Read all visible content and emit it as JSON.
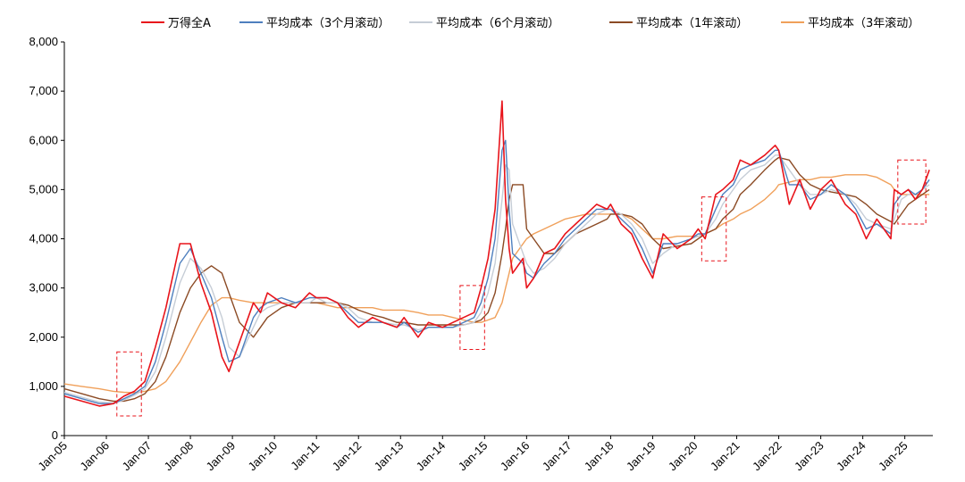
{
  "chart_data": {
    "type": "line",
    "ylim": [
      0,
      8000
    ],
    "yticks": [
      0,
      1000,
      2000,
      3000,
      4000,
      5000,
      6000,
      7000,
      8000
    ],
    "ytick_labels": [
      "0",
      "1,000",
      "2,000",
      "3,000",
      "4,000",
      "5,000",
      "6,000",
      "7,000",
      "8,000"
    ],
    "x_range": [
      "2005-01",
      "2025-09"
    ],
    "xtick_labels": [
      "Jan-05",
      "Jan-06",
      "Jan-07",
      "Jan-08",
      "Jan-09",
      "Jan-10",
      "Jan-11",
      "Jan-12",
      "Jan-13",
      "Jan-14",
      "Jan-15",
      "Jan-16",
      "Jan-17",
      "Jan-18",
      "Jan-19",
      "Jan-20",
      "Jan-21",
      "Jan-22",
      "Jan-23",
      "Jan-24",
      "Jan-25"
    ],
    "legend_position": "top",
    "grid": false,
    "series": [
      {
        "name": "万得全A",
        "color": "#e8141b",
        "x": [
          "2005-01",
          "2005-06",
          "2005-11",
          "2006-03",
          "2006-06",
          "2006-09",
          "2006-12",
          "2007-03",
          "2007-06",
          "2007-10",
          "2008-01",
          "2008-04",
          "2008-07",
          "2008-10",
          "2008-12",
          "2009-03",
          "2009-07",
          "2009-09",
          "2009-11",
          "2010-03",
          "2010-07",
          "2010-11",
          "2011-01",
          "2011-04",
          "2011-07",
          "2011-10",
          "2012-01",
          "2012-05",
          "2012-08",
          "2012-12",
          "2013-02",
          "2013-06",
          "2013-09",
          "2014-01",
          "2014-04",
          "2014-07",
          "2014-10",
          "2014-12",
          "2015-02",
          "2015-04",
          "2015-06",
          "2015-07",
          "2015-08",
          "2015-09",
          "2015-12",
          "2016-01",
          "2016-03",
          "2016-06",
          "2016-09",
          "2016-12",
          "2017-03",
          "2017-06",
          "2017-09",
          "2017-12",
          "2018-01",
          "2018-04",
          "2018-07",
          "2018-10",
          "2019-01",
          "2019-04",
          "2019-08",
          "2019-12",
          "2020-02",
          "2020-04",
          "2020-07",
          "2020-09",
          "2020-12",
          "2021-02",
          "2021-05",
          "2021-09",
          "2021-12",
          "2022-01",
          "2022-04",
          "2022-07",
          "2022-10",
          "2023-01",
          "2023-04",
          "2023-08",
          "2023-11",
          "2024-02",
          "2024-05",
          "2024-09",
          "2024-10",
          "2024-12",
          "2025-02",
          "2025-04",
          "2025-06",
          "2025-08"
        ],
        "values": [
          800,
          700,
          600,
          650,
          800,
          900,
          1100,
          1800,
          2600,
          3900,
          3900,
          3100,
          2500,
          1600,
          1300,
          1900,
          2700,
          2500,
          2900,
          2700,
          2600,
          2900,
          2800,
          2800,
          2700,
          2400,
          2200,
          2400,
          2300,
          2200,
          2400,
          2000,
          2300,
          2200,
          2300,
          2400,
          2500,
          3000,
          3600,
          4600,
          6800,
          4800,
          3800,
          3300,
          3600,
          3000,
          3200,
          3700,
          3800,
          4100,
          4300,
          4500,
          4700,
          4600,
          4700,
          4300,
          4100,
          3600,
          3200,
          4100,
          3800,
          4000,
          4200,
          4000,
          4900,
          5000,
          5200,
          5600,
          5500,
          5700,
          5900,
          5800,
          4700,
          5200,
          4600,
          5000,
          5200,
          4700,
          4500,
          4000,
          4400,
          4000,
          5000,
          4900,
          5000,
          4800,
          5000,
          5400
        ]
      },
      {
        "name": "平均成本（3个月滚动）",
        "color": "#4e7fbe",
        "x": [
          "2005-01",
          "2005-06",
          "2005-11",
          "2006-03",
          "2006-06",
          "2006-09",
          "2006-12",
          "2007-03",
          "2007-06",
          "2007-10",
          "2008-01",
          "2008-04",
          "2008-07",
          "2008-10",
          "2008-12",
          "2009-03",
          "2009-07",
          "2009-09",
          "2009-11",
          "2010-03",
          "2010-07",
          "2010-11",
          "2011-01",
          "2011-04",
          "2011-07",
          "2011-10",
          "2012-01",
          "2012-05",
          "2012-08",
          "2012-12",
          "2013-02",
          "2013-06",
          "2013-09",
          "2014-01",
          "2014-04",
          "2014-07",
          "2014-10",
          "2014-12",
          "2015-02",
          "2015-04",
          "2015-06",
          "2015-07",
          "2015-08",
          "2015-09",
          "2015-12",
          "2016-01",
          "2016-03",
          "2016-06",
          "2016-09",
          "2016-12",
          "2017-03",
          "2017-06",
          "2017-09",
          "2017-12",
          "2018-01",
          "2018-04",
          "2018-07",
          "2018-10",
          "2019-01",
          "2019-04",
          "2019-08",
          "2019-12",
          "2020-02",
          "2020-04",
          "2020-07",
          "2020-09",
          "2020-12",
          "2021-02",
          "2021-05",
          "2021-09",
          "2021-12",
          "2022-01",
          "2022-04",
          "2022-07",
          "2022-10",
          "2023-01",
          "2023-04",
          "2023-08",
          "2023-11",
          "2024-02",
          "2024-05",
          "2024-09",
          "2024-10",
          "2024-12",
          "2025-02",
          "2025-04",
          "2025-06",
          "2025-08"
        ],
        "values": [
          850,
          750,
          650,
          650,
          750,
          850,
          1000,
          1500,
          2300,
          3500,
          3800,
          3300,
          2800,
          2000,
          1500,
          1600,
          2400,
          2600,
          2700,
          2800,
          2700,
          2800,
          2800,
          2800,
          2700,
          2500,
          2300,
          2300,
          2300,
          2200,
          2300,
          2100,
          2200,
          2200,
          2200,
          2300,
          2400,
          2700,
          3200,
          4000,
          5800,
          6000,
          4600,
          3700,
          3500,
          3300,
          3200,
          3500,
          3700,
          4000,
          4200,
          4400,
          4600,
          4600,
          4600,
          4400,
          4200,
          3800,
          3300,
          3900,
          3900,
          4000,
          4100,
          4100,
          4600,
          4900,
          5100,
          5400,
          5500,
          5600,
          5800,
          5800,
          5100,
          5100,
          4800,
          4900,
          5100,
          4900,
          4600,
          4200,
          4300,
          4100,
          4700,
          4900,
          5000,
          4900,
          5000,
          5200
        ]
      },
      {
        "name": "平均成本（6个月滚动）",
        "color": "#c6cdd6",
        "x": [
          "2005-01",
          "2005-06",
          "2005-11",
          "2006-03",
          "2006-06",
          "2006-09",
          "2006-12",
          "2007-03",
          "2007-06",
          "2007-10",
          "2008-01",
          "2008-04",
          "2008-07",
          "2008-10",
          "2008-12",
          "2009-03",
          "2009-07",
          "2009-09",
          "2009-11",
          "2010-03",
          "2010-07",
          "2010-11",
          "2011-01",
          "2011-04",
          "2011-07",
          "2011-10",
          "2012-01",
          "2012-05",
          "2012-08",
          "2012-12",
          "2013-02",
          "2013-06",
          "2013-09",
          "2014-01",
          "2014-04",
          "2014-07",
          "2014-10",
          "2014-12",
          "2015-02",
          "2015-04",
          "2015-06",
          "2015-07",
          "2015-08",
          "2015-09",
          "2015-12",
          "2016-01",
          "2016-03",
          "2016-06",
          "2016-09",
          "2016-12",
          "2017-03",
          "2017-06",
          "2017-09",
          "2017-12",
          "2018-01",
          "2018-04",
          "2018-07",
          "2018-10",
          "2019-01",
          "2019-04",
          "2019-08",
          "2019-12",
          "2020-02",
          "2020-04",
          "2020-07",
          "2020-09",
          "2020-12",
          "2021-02",
          "2021-05",
          "2021-09",
          "2021-12",
          "2022-01",
          "2022-04",
          "2022-07",
          "2022-10",
          "2023-01",
          "2023-04",
          "2023-08",
          "2023-11",
          "2024-02",
          "2024-05",
          "2024-09",
          "2024-10",
          "2024-12",
          "2025-02",
          "2025-04",
          "2025-06",
          "2025-08"
        ],
        "values": [
          880,
          780,
          680,
          660,
          720,
          820,
          950,
          1300,
          2000,
          3100,
          3600,
          3400,
          3000,
          2400,
          1800,
          1600,
          2200,
          2500,
          2600,
          2700,
          2700,
          2700,
          2800,
          2700,
          2700,
          2600,
          2400,
          2300,
          2300,
          2250,
          2250,
          2150,
          2200,
          2200,
          2200,
          2250,
          2300,
          2500,
          2900,
          3500,
          4800,
          5500,
          5400,
          4300,
          3700,
          3500,
          3300,
          3400,
          3600,
          3900,
          4100,
          4300,
          4500,
          4600,
          4600,
          4500,
          4300,
          4000,
          3500,
          3700,
          3900,
          4000,
          4050,
          4100,
          4400,
          4700,
          5000,
          5200,
          5400,
          5500,
          5700,
          5700,
          5400,
          5100,
          4900,
          4900,
          5000,
          4900,
          4700,
          4400,
          4300,
          4200,
          4400,
          4800,
          4900,
          4900,
          5000,
          5100
        ]
      },
      {
        "name": "平均成本（1年滚动）",
        "color": "#8b4a24",
        "x": [
          "2005-01",
          "2005-06",
          "2005-11",
          "2006-03",
          "2006-06",
          "2006-09",
          "2006-12",
          "2007-03",
          "2007-06",
          "2007-10",
          "2008-01",
          "2008-04",
          "2008-07",
          "2008-10",
          "2008-12",
          "2009-03",
          "2009-07",
          "2009-09",
          "2009-11",
          "2010-03",
          "2010-07",
          "2010-11",
          "2011-01",
          "2011-04",
          "2011-07",
          "2011-10",
          "2012-01",
          "2012-05",
          "2012-08",
          "2012-12",
          "2013-02",
          "2013-06",
          "2013-09",
          "2014-01",
          "2014-04",
          "2014-07",
          "2014-10",
          "2014-12",
          "2015-02",
          "2015-04",
          "2015-06",
          "2015-07",
          "2015-08",
          "2015-09",
          "2015-12",
          "2016-01",
          "2016-03",
          "2016-06",
          "2016-09",
          "2016-12",
          "2017-03",
          "2017-06",
          "2017-09",
          "2017-12",
          "2018-01",
          "2018-04",
          "2018-07",
          "2018-10",
          "2019-01",
          "2019-04",
          "2019-08",
          "2019-12",
          "2020-02",
          "2020-04",
          "2020-07",
          "2020-09",
          "2020-12",
          "2021-02",
          "2021-05",
          "2021-09",
          "2021-12",
          "2022-01",
          "2022-04",
          "2022-07",
          "2022-10",
          "2023-01",
          "2023-04",
          "2023-08",
          "2023-11",
          "2024-02",
          "2024-05",
          "2024-09",
          "2024-10",
          "2024-12",
          "2025-02",
          "2025-04",
          "2025-06",
          "2025-08"
        ],
        "values": [
          950,
          850,
          750,
          700,
          700,
          750,
          850,
          1100,
          1600,
          2500,
          3000,
          3300,
          3450,
          3300,
          2900,
          2300,
          2000,
          2200,
          2400,
          2600,
          2700,
          2700,
          2700,
          2700,
          2700,
          2650,
          2550,
          2450,
          2400,
          2300,
          2300,
          2250,
          2250,
          2250,
          2250,
          2250,
          2300,
          2350,
          2500,
          2900,
          3700,
          4200,
          4800,
          5100,
          5100,
          4200,
          4000,
          3700,
          3700,
          3900,
          4100,
          4200,
          4300,
          4400,
          4500,
          4500,
          4450,
          4300,
          4000,
          3800,
          3850,
          3900,
          4000,
          4100,
          4200,
          4400,
          4600,
          4900,
          5100,
          5400,
          5600,
          5650,
          5600,
          5300,
          5100,
          5000,
          4950,
          4900,
          4850,
          4700,
          4500,
          4350,
          4300,
          4500,
          4700,
          4800,
          4900,
          5000
        ]
      },
      {
        "name": "平均成本（3年滚动）",
        "color": "#f0a05a",
        "x": [
          "2005-01",
          "2005-06",
          "2005-11",
          "2006-03",
          "2006-06",
          "2006-09",
          "2006-12",
          "2007-03",
          "2007-06",
          "2007-10",
          "2008-01",
          "2008-04",
          "2008-07",
          "2008-10",
          "2008-12",
          "2009-03",
          "2009-07",
          "2009-09",
          "2009-11",
          "2010-03",
          "2010-07",
          "2010-11",
          "2011-01",
          "2011-04",
          "2011-07",
          "2011-10",
          "2012-01",
          "2012-05",
          "2012-08",
          "2012-12",
          "2013-02",
          "2013-06",
          "2013-09",
          "2014-01",
          "2014-04",
          "2014-07",
          "2014-10",
          "2014-12",
          "2015-02",
          "2015-04",
          "2015-06",
          "2015-07",
          "2015-08",
          "2015-09",
          "2015-12",
          "2016-01",
          "2016-03",
          "2016-06",
          "2016-09",
          "2016-12",
          "2017-03",
          "2017-06",
          "2017-09",
          "2017-12",
          "2018-01",
          "2018-04",
          "2018-07",
          "2018-10",
          "2019-01",
          "2019-04",
          "2019-08",
          "2019-12",
          "2020-02",
          "2020-04",
          "2020-07",
          "2020-09",
          "2020-12",
          "2021-02",
          "2021-05",
          "2021-09",
          "2021-12",
          "2022-01",
          "2022-04",
          "2022-07",
          "2022-10",
          "2023-01",
          "2023-04",
          "2023-08",
          "2023-11",
          "2024-02",
          "2024-05",
          "2024-09",
          "2024-10",
          "2024-12",
          "2025-02",
          "2025-04",
          "2025-06",
          "2025-08"
        ],
        "values": [
          1050,
          1000,
          950,
          900,
          880,
          870,
          900,
          950,
          1100,
          1500,
          1900,
          2300,
          2650,
          2800,
          2800,
          2750,
          2700,
          2700,
          2700,
          2700,
          2700,
          2700,
          2700,
          2650,
          2600,
          2600,
          2600,
          2600,
          2550,
          2550,
          2550,
          2500,
          2450,
          2450,
          2400,
          2350,
          2300,
          2300,
          2350,
          2400,
          2700,
          3000,
          3300,
          3600,
          3900,
          4000,
          4100,
          4200,
          4300,
          4400,
          4450,
          4500,
          4500,
          4500,
          4500,
          4500,
          4400,
          4200,
          4000,
          4000,
          4050,
          4050,
          4050,
          4100,
          4200,
          4300,
          4400,
          4500,
          4600,
          4800,
          5000,
          5100,
          5150,
          5200,
          5200,
          5250,
          5250,
          5300,
          5300,
          5300,
          5250,
          5100,
          5000,
          4900,
          4900,
          4900,
          4900,
          4900
        ]
      }
    ],
    "highlight_boxes": [
      {
        "x": [
          "2006-04",
          "2006-11"
        ],
        "y": [
          400,
          1700
        ]
      },
      {
        "x": [
          "2014-06",
          "2015-01"
        ],
        "y": [
          1750,
          3050
        ]
      },
      {
        "x": [
          "2020-03",
          "2020-10"
        ],
        "y": [
          3550,
          4850
        ]
      },
      {
        "x": [
          "2024-11",
          "2025-07"
        ],
        "y": [
          4300,
          5600
        ]
      }
    ]
  }
}
